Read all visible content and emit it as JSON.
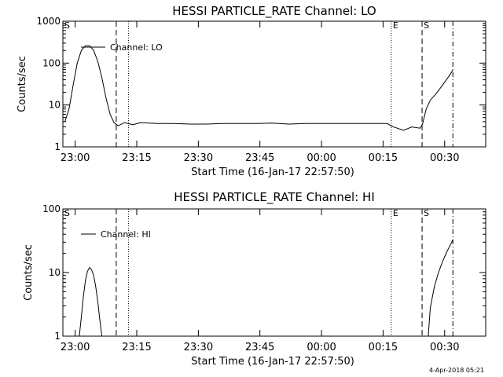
{
  "footer_stamp": "4-Apr-2018 05:21",
  "chart_data": [
    {
      "type": "line",
      "title": "HESSI PARTICLE_RATE Channel: LO",
      "xlabel": "Start Time (16-Jan-17 22:57:50)",
      "ylabel": "Counts/sec",
      "y_scale": "log",
      "ylim": [
        1,
        1000
      ],
      "y_ticks": [
        "1",
        "10",
        "100",
        "1000"
      ],
      "x_ticks": [
        "23:00",
        "23:15",
        "23:30",
        "23:45",
        "00:00",
        "00:15",
        "00:30"
      ],
      "legend": "Channel: LO",
      "legend_placement": "top-left",
      "markers": [
        {
          "label": "S",
          "x_min": -3.0,
          "style": "solid"
        },
        {
          "label": "",
          "x_min": 10.0,
          "style": "dashed"
        },
        {
          "label": "",
          "x_min": 13.0,
          "style": "dotted"
        },
        {
          "label": "E",
          "x_min": 77.0,
          "style": "dotted"
        },
        {
          "label": "S",
          "x_min": 84.5,
          "style": "dashed"
        },
        {
          "label": "",
          "x_min": 92.0,
          "style": "dashdot"
        }
      ],
      "series": [
        {
          "x": [
            -2.5,
            -1.5,
            -0.5,
            0.5,
            1.5,
            2.5,
            3.5,
            4.5,
            5.5,
            6.5,
            7.5,
            8.5,
            9.5,
            10.5,
            12.0,
            14.0,
            16.0,
            20.0,
            24.0,
            28.0,
            32.0,
            36.0,
            40.0,
            44.0,
            48.0,
            52.0,
            56.0,
            60.0,
            64.0,
            68.0,
            72.0,
            76.0,
            77.5,
            80.0,
            82.0,
            84.0,
            84.6,
            85.5,
            86.5,
            88.0,
            89.5,
            91.0,
            92.0
          ],
          "y": [
            4,
            8,
            30,
            100,
            200,
            260,
            260,
            200,
            110,
            45,
            15,
            6,
            3.7,
            3.2,
            3.8,
            3.4,
            3.8,
            3.6,
            3.6,
            3.5,
            3.5,
            3.6,
            3.6,
            3.6,
            3.7,
            3.5,
            3.6,
            3.6,
            3.6,
            3.6,
            3.6,
            3.6,
            3.0,
            2.5,
            3.0,
            2.8,
            3.5,
            8,
            13,
            19,
            30,
            48,
            68
          ]
        }
      ]
    },
    {
      "type": "line",
      "title": "HESSI PARTICLE_RATE Channel: HI",
      "xlabel": "Start Time (16-Jan-17 22:57:50)",
      "ylabel": "Counts/sec",
      "y_scale": "log",
      "ylim": [
        1,
        100
      ],
      "y_ticks": [
        "1",
        "10",
        "100"
      ],
      "x_ticks": [
        "23:00",
        "23:15",
        "23:30",
        "23:45",
        "00:00",
        "00:15",
        "00:30"
      ],
      "legend": "Channel: HI",
      "legend_placement": "top-left",
      "markers": [
        {
          "label": "S",
          "x_min": -3.0,
          "style": "solid"
        },
        {
          "label": "",
          "x_min": 10.0,
          "style": "dashed"
        },
        {
          "label": "",
          "x_min": 13.0,
          "style": "dotted"
        },
        {
          "label": "E",
          "x_min": 77.0,
          "style": "dotted"
        },
        {
          "label": "S",
          "x_min": 84.5,
          "style": "dashed"
        },
        {
          "label": "",
          "x_min": 92.0,
          "style": "dashdot"
        }
      ],
      "series": [
        {
          "segments": [
            {
              "x": [
                1.0,
                1.5,
                2.0,
                2.5,
                3.0,
                3.5,
                4.0,
                4.5,
                5.0,
                5.5,
                6.0,
                6.5
              ],
              "y": [
                1.0,
                2.0,
                4.2,
                7.5,
                10.5,
                12.0,
                11.0,
                9.0,
                6.0,
                3.5,
                1.8,
                1.0
              ]
            },
            {
              "x": [
                86.0,
                86.5,
                87.5,
                88.5,
                89.5,
                90.5,
                91.5,
                92.0
              ],
              "y": [
                1.0,
                2.8,
                6.0,
                10.0,
                15.0,
                21.0,
                28.0,
                33.0
              ]
            }
          ]
        }
      ]
    }
  ]
}
